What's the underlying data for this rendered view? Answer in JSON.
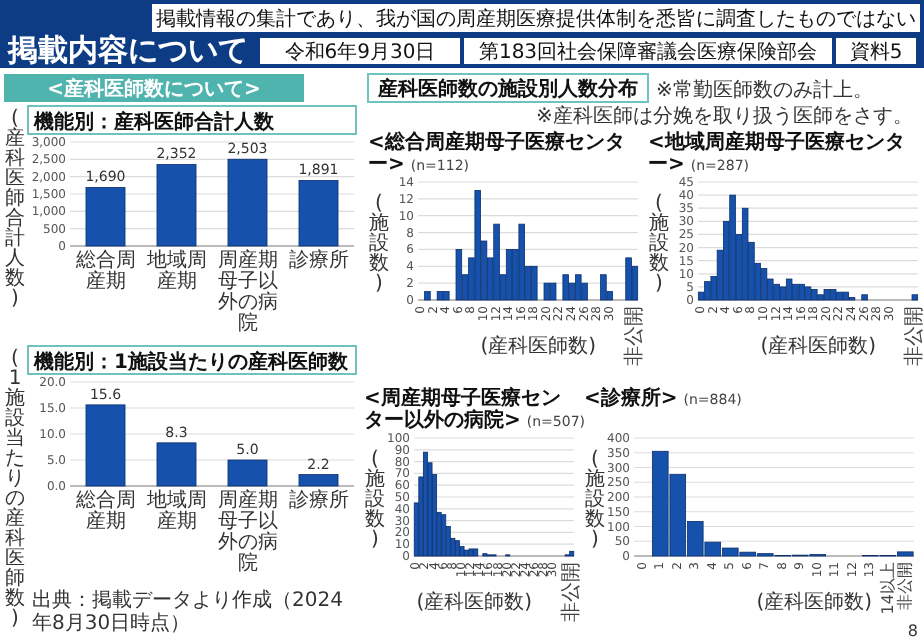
{
  "chart_data": [
    {
      "type": "other",
      "title": "掲載内容について",
      "annotations": [
        "掲載情報の集計であり、我が国の周産期医療提供体制を悉皆に調査したものではない",
        "令和6年9月30日",
        "第183回社会保障審議会医療保険部会",
        "資料5",
        "<産科医師数について>",
        "産科医師数の施設別人数分布",
        "※常勤医師数のみ計上。",
        "※産科医師は分娩を取り扱う医師をさす。",
        "出典：掲載データより作成（2024年8月30日時点）",
        "8"
      ]
    },
    {
      "type": "bar",
      "title": "機能別：産科医師合計人数",
      "ylabel": "(産科医師合計人数)",
      "categories": [
        "総合周産期",
        "地域周産期",
        "周産期母子以外の病院",
        "診療所"
      ],
      "values": [
        1690,
        2352,
        2503,
        1891
      ],
      "value_labels": [
        "1,690",
        "2,352",
        "2,503",
        "1,891"
      ],
      "color": "#1652ad",
      "ylim": [
        0,
        3000
      ],
      "yticks": [
        0,
        500,
        {
          "value": 1000,
          "label": "1,000"
        },
        {
          "value": 1500,
          "label": "1,500"
        },
        {
          "value": 2000,
          "label": "2,000"
        },
        {
          "value": 2500,
          "label": "2,500"
        },
        {
          "value": 3000,
          "label": "3,000"
        }
      ],
      "grid": "y"
    },
    {
      "type": "bar",
      "title": "機能別：1施設当たりの産科医師数",
      "ylabel": "(1施設当たりの産科医師数)",
      "categories": [
        "総合周産期",
        "地域周産期",
        "周産期母子以外の病院",
        "診療所"
      ],
      "values": [
        15.6,
        8.3,
        5.0,
        2.2
      ],
      "value_labels": [
        "15.6",
        "8.3",
        "5.0",
        "2.2"
      ],
      "color": "#1652ad",
      "ylim": [
        0,
        20
      ],
      "yticks": [
        {
          "value": 0,
          "label": "0.0"
        },
        {
          "value": 5,
          "label": "5.0"
        },
        {
          "value": 10,
          "label": "10.0"
        },
        {
          "value": 15,
          "label": "15.0"
        },
        {
          "value": 20,
          "label": "20.0"
        }
      ],
      "grid": "y"
    },
    {
      "type": "bar",
      "title": "<総合周産期母子医療センター>",
      "subtitle": "(n=112)",
      "xlabel": "(産科医師数)",
      "ylabel": "(施設数)",
      "categories": [
        "0",
        null,
        "2",
        null,
        "4",
        null,
        "6",
        null,
        "8",
        null,
        "10",
        null,
        "12",
        null,
        "14",
        null,
        "16",
        null,
        "18",
        null,
        "20",
        null,
        "22",
        null,
        "24",
        null,
        "26",
        null,
        "28",
        null,
        "30",
        null,
        null,
        null,
        "非公開"
      ],
      "values": [
        0,
        1,
        0,
        1,
        1,
        0,
        6,
        3,
        5,
        13,
        7,
        5,
        9,
        3,
        6,
        6,
        9,
        4,
        4,
        0,
        2,
        2,
        0,
        3,
        2,
        3,
        2,
        0,
        0,
        3,
        1,
        0,
        0,
        5,
        4
      ],
      "color": "#1652ad",
      "ylim": [
        0,
        14
      ],
      "yticks": [
        0,
        2,
        4,
        6,
        8,
        10,
        12,
        14
      ],
      "grid": "y"
    },
    {
      "type": "bar",
      "title": "<地域周産期母子医療センター>",
      "subtitle": "(n=287)",
      "xlabel": "(産科医師数)",
      "ylabel": "(施設数)",
      "categories": [
        "0",
        null,
        "2",
        null,
        "4",
        null,
        "6",
        null,
        "8",
        null,
        "10",
        null,
        "12",
        null,
        "14",
        null,
        "16",
        null,
        "18",
        null,
        "20",
        null,
        "22",
        null,
        "24",
        null,
        "26",
        null,
        "28",
        null,
        "30",
        null,
        null,
        null,
        "非公開"
      ],
      "values": [
        3,
        7,
        9,
        19,
        30,
        40,
        25,
        35,
        22,
        14,
        12,
        8,
        6,
        5,
        8,
        6,
        6,
        5,
        4,
        2,
        4,
        4,
        3,
        3,
        1,
        0,
        2,
        0,
        0,
        0,
        0,
        0,
        0,
        0,
        2
      ],
      "color": "#1652ad",
      "ylim": [
        0,
        45
      ],
      "yticks": [
        0,
        5,
        10,
        15,
        20,
        25,
        30,
        35,
        40,
        45
      ],
      "grid": "y"
    },
    {
      "type": "bar",
      "title": "<周産期母子医療センター以外の病院>",
      "subtitle": "(n=507)",
      "xlabel": "(産科医師数)",
      "ylabel": "(施設数)",
      "categories": [
        "0",
        null,
        "2",
        null,
        "4",
        null,
        "6",
        null,
        "8",
        null,
        "10",
        null,
        "12",
        null,
        "14",
        null,
        "16",
        null,
        "18",
        null,
        "20",
        null,
        "22",
        null,
        "24",
        null,
        "26",
        null,
        "28",
        null,
        "30",
        null,
        null,
        null,
        "非公開"
      ],
      "values": [
        45,
        67,
        88,
        79,
        69,
        37,
        35,
        25,
        15,
        13,
        8,
        5,
        6,
        6,
        0,
        2,
        1,
        1,
        0,
        0,
        1,
        0,
        0,
        0,
        0,
        0,
        0,
        0,
        0,
        0,
        0,
        0,
        0,
        1,
        4
      ],
      "color": "#1652ad",
      "ylim": [
        0,
        100
      ],
      "yticks": [
        0,
        10,
        20,
        30,
        40,
        50,
        60,
        70,
        80,
        90,
        100
      ],
      "grid": "y"
    },
    {
      "type": "bar",
      "title": "<診療所>",
      "subtitle": "(n=884)",
      "xlabel": "(産科医師数)",
      "ylabel": "(施設数)",
      "categories": [
        "0",
        "1",
        "2",
        "3",
        "4",
        "5",
        "6",
        "7",
        "8",
        "9",
        "10",
        "11",
        "12",
        "13",
        "14以上",
        "非公開"
      ],
      "values": [
        0,
        355,
        277,
        117,
        47,
        27,
        13,
        8,
        2,
        3,
        5,
        0,
        0,
        2,
        2,
        14
      ],
      "color": "#1652ad",
      "ylim": [
        0,
        400
      ],
      "yticks": [
        0,
        50,
        100,
        150,
        200,
        250,
        300,
        350,
        400
      ],
      "grid": "y"
    }
  ]
}
